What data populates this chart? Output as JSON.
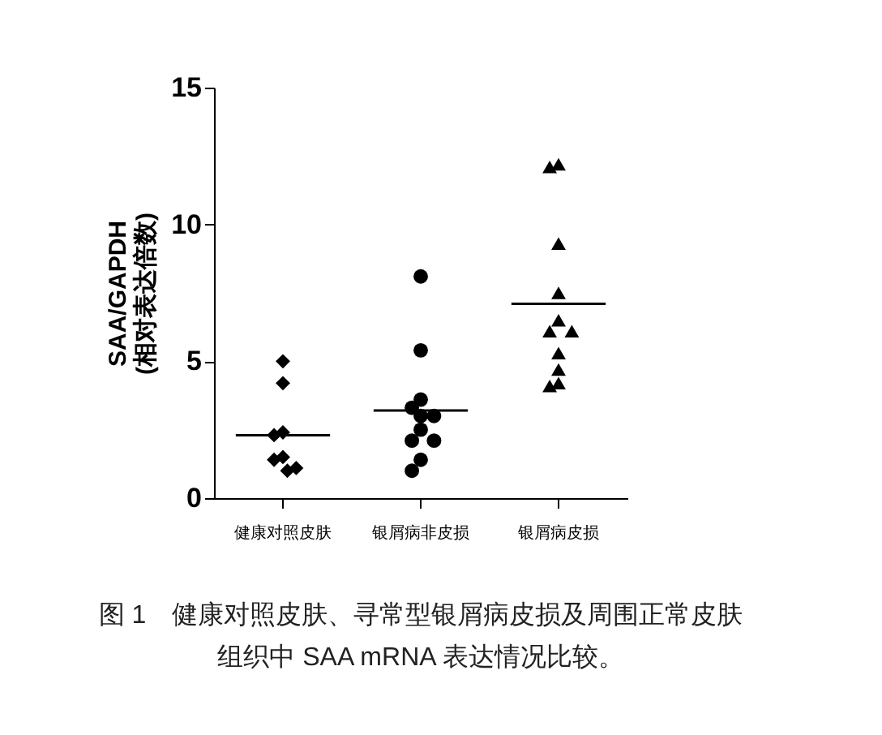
{
  "chart_data": {
    "type": "scatter",
    "categories": [
      "健康对照皮肤",
      "银屑病非皮损",
      "银屑病皮损"
    ],
    "ylabel": "SAA/GAPDH\n(相对表达倍数)",
    "ylim": [
      0,
      15
    ],
    "yticks": [
      0,
      5,
      10,
      15
    ],
    "annotations": [
      "图 1　健康对照皮肤、寻常型银屑病皮损及周围正常皮肤组织中 SAA mRNA 表达情况比较。"
    ],
    "series": [
      {
        "type": "scatter",
        "marker": "diamond",
        "color": "#000000",
        "x": [
          "健康对照皮肤",
          "健康对照皮肤",
          "健康对照皮肤",
          "健康对照皮肤",
          "健康对照皮肤",
          "健康对照皮肤",
          "健康对照皮肤",
          "健康对照皮肤"
        ],
        "values": [
          5.0,
          4.2,
          2.4,
          2.3,
          1.4,
          1.0,
          1.1,
          1.5
        ]
      },
      {
        "type": "scatter",
        "marker": "circle",
        "color": "#000000",
        "x": [
          "银屑病非皮损",
          "银屑病非皮损",
          "银屑病非皮损",
          "银屑病非皮损",
          "银屑病非皮损",
          "银屑病非皮损",
          "银屑病非皮损",
          "银屑病非皮损",
          "银屑病非皮损",
          "银屑病非皮损",
          "银屑病非皮损"
        ],
        "values": [
          8.1,
          5.4,
          3.6,
          3.3,
          3.0,
          3.0,
          2.5,
          2.1,
          2.1,
          1.4,
          1.0
        ]
      },
      {
        "type": "scatter",
        "marker": "triangle",
        "color": "#000000",
        "x": [
          "银屑病皮损",
          "银屑病皮损",
          "银屑病皮损",
          "银屑病皮损",
          "银屑病皮损",
          "银屑病皮损",
          "银屑病皮损",
          "银屑病皮损",
          "银屑病皮损",
          "银屑病皮损",
          "银屑病皮损"
        ],
        "values": [
          12.2,
          12.1,
          9.3,
          7.5,
          6.5,
          6.1,
          6.1,
          5.3,
          4.7,
          4.1,
          4.2
        ]
      },
      {
        "type": "box",
        "color": "#000000",
        "boxes": [
          {
            "low": 2.3,
            "q1": 2.3,
            "median": 2.3,
            "q3": 2.3,
            "high": 2.3
          },
          {
            "low": 3.2,
            "q1": 3.2,
            "median": 3.2,
            "q3": 3.2,
            "high": 3.2
          },
          {
            "low": 7.1,
            "q1": 7.1,
            "median": 7.1,
            "q3": 7.1,
            "high": 7.1
          }
        ]
      }
    ]
  }
}
